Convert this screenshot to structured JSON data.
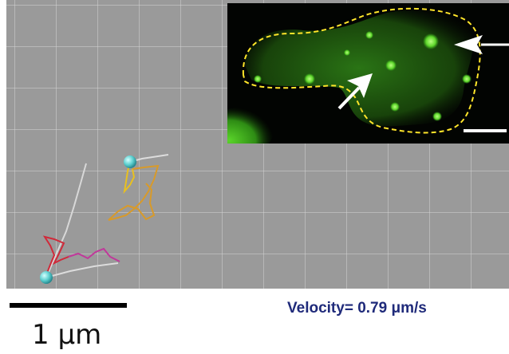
{
  "scale_bar": {
    "label": "1 μm"
  },
  "velocity": {
    "text": "Velocity= 0.79 μm/s"
  },
  "colors": {
    "track_yellow": "#e8c020",
    "track_orange": "#d89a2a",
    "track_red": "#d02a3a",
    "track_magenta": "#c0389a",
    "bead": "#5ccfcf",
    "cell_outline": "#ffe52a",
    "fluorescence": "#3ec21e",
    "arrow": "#ffffff"
  },
  "icons": {
    "bead_top": "bead-sphere-icon",
    "bead_bottom": "bead-sphere-icon",
    "inset_arrows": [
      "arrow-icon",
      "arrow-icon"
    ]
  }
}
